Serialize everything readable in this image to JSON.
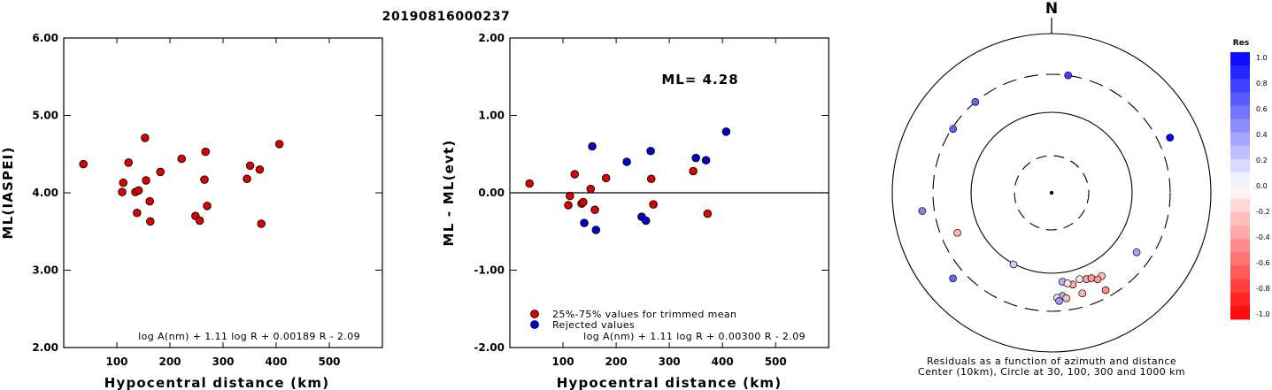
{
  "title": "20190816000237",
  "chart_data": [
    {
      "type": "scatter",
      "xlabel": "Hypocentral distance (km)",
      "ylabel": "ML(IASPEI)",
      "xlim": [
        0,
        600
      ],
      "ylim": [
        2.0,
        6.0
      ],
      "x_ticks": [
        "100",
        "200",
        "300",
        "400",
        "500"
      ],
      "y_ticks": [
        "2.00",
        "3.00",
        "4.00",
        "5.00",
        "6.00"
      ],
      "formula": "log A(nm) + 1.11 log R + 0.00189 R - 2.09",
      "series": [
        {
          "color": "#dd0000",
          "points": [
            [
              37,
              4.37
            ],
            [
              110,
              4.01
            ],
            [
              112,
              4.13
            ],
            [
              122,
              4.39
            ],
            [
              135,
              4.01
            ],
            [
              138,
              3.74
            ],
            [
              141,
              4.03
            ],
            [
              153,
              4.71
            ],
            [
              155,
              4.16
            ],
            [
              162,
              3.89
            ],
            [
              163,
              3.63
            ],
            [
              182,
              4.27
            ],
            [
              222,
              4.44
            ],
            [
              248,
              3.7
            ],
            [
              256,
              3.64
            ],
            [
              265,
              4.17
            ],
            [
              267,
              4.53
            ],
            [
              270,
              3.83
            ],
            [
              345,
              4.18
            ],
            [
              351,
              4.35
            ],
            [
              369,
              4.3
            ],
            [
              372,
              3.6
            ],
            [
              406,
              4.63
            ]
          ]
        }
      ]
    },
    {
      "type": "scatter",
      "xlabel": "Hypocentral distance (km)",
      "ylabel": "ML - ML(evt)",
      "xlim": [
        0,
        600
      ],
      "ylim": [
        -2.0,
        2.0
      ],
      "x_ticks": [
        "100",
        "200",
        "300",
        "400",
        "500"
      ],
      "y_ticks": [
        "-2.00",
        "-1.00",
        "0.00",
        "1.00",
        "2.00"
      ],
      "annotation": "ML= 4.28",
      "formula": "log A(nm) + 1.11 log R + 0.00300 R - 2.09",
      "legend": [
        "25%-75% values for trimmed mean",
        "Rejected values"
      ],
      "series": [
        {
          "name": "25%-75% values for trimmed mean",
          "color": "#dd0000",
          "points": [
            [
              37,
              0.12
            ],
            [
              110,
              -0.16
            ],
            [
              113,
              -0.04
            ],
            [
              122,
              0.24
            ],
            [
              135,
              -0.14
            ],
            [
              138,
              -0.12
            ],
            [
              152,
              0.05
            ],
            [
              160,
              -0.22
            ],
            [
              181,
              0.19
            ],
            [
              266,
              0.18
            ],
            [
              270,
              -0.15
            ],
            [
              345,
              0.28
            ],
            [
              372,
              -0.27
            ]
          ]
        },
        {
          "name": "Rejected values",
          "color": "#0000cc",
          "points": [
            [
              140,
              -0.39
            ],
            [
              155,
              0.6
            ],
            [
              162,
              -0.48
            ],
            [
              220,
              0.4
            ],
            [
              248,
              -0.31
            ],
            [
              256,
              -0.36
            ],
            [
              265,
              0.54
            ],
            [
              350,
              0.45
            ],
            [
              369,
              0.42
            ],
            [
              407,
              0.79
            ]
          ]
        }
      ]
    },
    {
      "type": "polar_scatter",
      "north_label": "N",
      "caption_line1": "Residuals as a function of azimuth and distance",
      "caption_line2": "Center (10km), Circle at 30, 100, 300 and 1000 km",
      "colorbar_title": "Res",
      "colorbar_ticks": [
        "1.0",
        "0.8",
        "0.6",
        "0.4",
        "0.2",
        "0.0",
        "-0.2",
        "-0.4",
        "-0.6",
        "-0.8",
        "-1.0"
      ],
      "points": [
        {
          "azimuth": 8,
          "distance_km": 650,
          "residual": 0.75
        },
        {
          "azimuth": 65,
          "distance_km": 1000,
          "residual": 1.0
        },
        {
          "azimuth": 320,
          "distance_km": 650,
          "residual": 0.6
        },
        {
          "azimuth": 303,
          "distance_km": 620,
          "residual": 0.6
        },
        {
          "azimuth": 262,
          "distance_km": 1000,
          "residual": 0.5
        },
        {
          "azimuth": 247,
          "distance_km": 360,
          "residual": -0.3
        },
        {
          "azimuth": 208,
          "distance_km": 170,
          "residual": 0.2
        },
        {
          "azimuth": 229,
          "distance_km": 1000,
          "residual": 0.6
        },
        {
          "azimuth": 125,
          "distance_km": 380,
          "residual": 0.35
        },
        {
          "azimuth": 149,
          "distance_km": 300,
          "residual": -0.25
        },
        {
          "azimuth": 162,
          "distance_km": 240,
          "residual": -0.1
        },
        {
          "azimuth": 158,
          "distance_km": 260,
          "residual": -0.35
        },
        {
          "azimuth": 155,
          "distance_km": 270,
          "residual": -0.4
        },
        {
          "azimuth": 152,
          "distance_km": 310,
          "residual": -0.4
        },
        {
          "azimuth": 167,
          "distance_km": 270,
          "residual": -0.35
        },
        {
          "azimuth": 173,
          "distance_km": 230,
          "residual": 0.3
        },
        {
          "azimuth": 170,
          "distance_km": 250,
          "residual": -0.1
        },
        {
          "azimuth": 174,
          "distance_km": 380,
          "residual": 0.3
        },
        {
          "azimuth": 177,
          "distance_km": 400,
          "residual": -0.15
        },
        {
          "azimuth": 176,
          "distance_km": 450,
          "residual": 0.4
        },
        {
          "azimuth": 172,
          "distance_km": 420,
          "residual": -0.25
        },
        {
          "azimuth": 163,
          "distance_km": 400,
          "residual": -0.3
        },
        {
          "azimuth": 151,
          "distance_km": 500,
          "residual": -0.45
        }
      ]
    }
  ]
}
